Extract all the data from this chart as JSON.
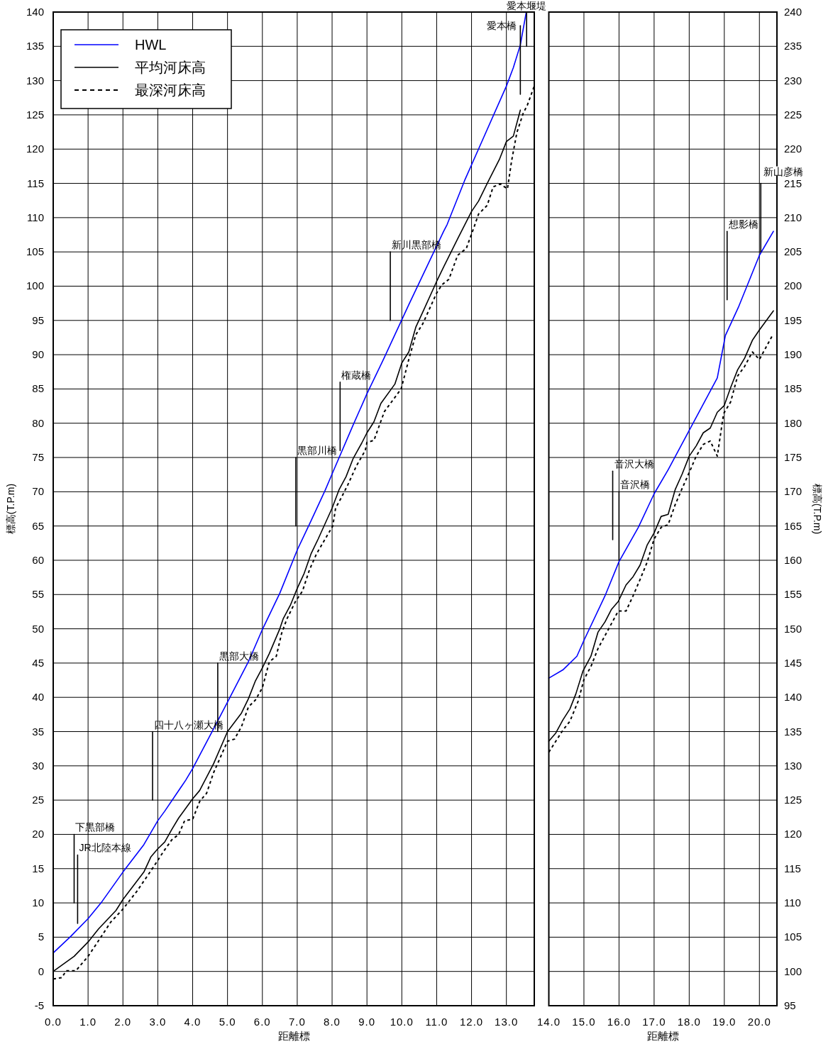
{
  "chart_data": [
    {
      "type": "line",
      "xlabel": "距離標",
      "ylabel": "標高(T.P.m)",
      "xlim": [
        0,
        13.8
      ],
      "xticks": [
        {
          "value": 0,
          "label": "0.0"
        },
        {
          "value": 1,
          "label": "1.0"
        },
        {
          "value": 2,
          "label": "2.0"
        },
        {
          "value": 3,
          "label": "3.0"
        },
        {
          "value": 4,
          "label": "4.0"
        },
        {
          "value": 5,
          "label": "5.0"
        },
        {
          "value": 6,
          "label": "6.0"
        },
        {
          "value": 7,
          "label": "7.0"
        },
        {
          "value": 8,
          "label": "8.0"
        },
        {
          "value": 9,
          "label": "9.0"
        },
        {
          "value": 10,
          "label": "10.0"
        },
        {
          "value": 11,
          "label": "11.0"
        },
        {
          "value": 12,
          "label": "12.0"
        },
        {
          "value": 13,
          "label": "13.0"
        }
      ],
      "ylim": [
        -5,
        140
      ],
      "yticks": [
        -5,
        0,
        5,
        10,
        15,
        20,
        25,
        30,
        35,
        40,
        45,
        50,
        55,
        60,
        65,
        70,
        75,
        80,
        85,
        90,
        95,
        100,
        105,
        110,
        115,
        120,
        125,
        130,
        135,
        140
      ],
      "grid": true,
      "legend": "top left",
      "series": [
        {
          "name": "HWL",
          "color": "#0000ff",
          "x": [
            0,
            0.5,
            1.0,
            1.4,
            2.0,
            2.6,
            3.0,
            3.2,
            3.8,
            4.0,
            4.6,
            5.0,
            5.6,
            6.0,
            6.5,
            7.0,
            7.4,
            7.8,
            8.0,
            8.6,
            9.0,
            9.5,
            10.2,
            11.2,
            11.3,
            11.8,
            12.2,
            13.0,
            13.2,
            13.4,
            13.57
          ],
          "values": [
            2.7,
            5.1,
            7.7,
            10.2,
            14.5,
            18.5,
            22.0,
            23.4,
            27.9,
            29.6,
            35.4,
            39.3,
            45.2,
            49.9,
            55.2,
            61.5,
            65.8,
            70.2,
            72.6,
            79.7,
            84.3,
            89.6,
            97.3,
            108.0,
            109.0,
            115.4,
            120.0,
            129.2,
            131.9,
            135.2,
            140.0
          ]
        },
        {
          "name": "平均河床高",
          "color": "#000000",
          "x": [
            0,
            0.6,
            1.0,
            1.3,
            1.8,
            2.0,
            2.6,
            2.8,
            3.0,
            3.2,
            3.4,
            3.6,
            4.0,
            4.2,
            4.6,
            5.0,
            5.4,
            5.6,
            5.8,
            6.0,
            6.2,
            6.5,
            6.6,
            6.8,
            7.0,
            7.2,
            7.4,
            7.6,
            8.0,
            8.2,
            8.4,
            8.6,
            8.85,
            9.0,
            9.2,
            9.4,
            9.8,
            10.0,
            10.2,
            10.4,
            10.6,
            11.0,
            11.2,
            11.6,
            12.0,
            12.2,
            12.45,
            12.8,
            13.0,
            13.2,
            13.4
          ],
          "values": [
            0.0,
            2.2,
            4.3,
            6.2,
            8.9,
            10.5,
            14.5,
            16.7,
            17.9,
            18.9,
            20.7,
            22.4,
            25.2,
            26.4,
            30.3,
            35.0,
            37.7,
            39.8,
            42.4,
            44.3,
            46.4,
            50.0,
            51.5,
            53.4,
            55.9,
            58.1,
            61.0,
            63.1,
            67.6,
            70.3,
            72.2,
            74.8,
            77.1,
            78.6,
            80.2,
            82.9,
            85.7,
            88.8,
            90.4,
            94.0,
            96.2,
            100.7,
            102.8,
            106.9,
            110.9,
            112.4,
            115.0,
            118.5,
            121.1,
            121.9,
            125.7
          ]
        },
        {
          "name": "最深河床高",
          "color": "#000000",
          "line_style": "dashed",
          "x": [
            0,
            0.25,
            0.37,
            0.65,
            1.0,
            1.25,
            1.65,
            2.0,
            2.4,
            2.75,
            3.0,
            3.15,
            3.4,
            3.6,
            3.77,
            4.0,
            4.2,
            4.4,
            4.6,
            5.0,
            5.2,
            5.4,
            5.6,
            5.8,
            6.0,
            6.2,
            6.4,
            6.55,
            6.7,
            6.95,
            7.15,
            7.35,
            7.55,
            7.8,
            8.02,
            8.1,
            8.25,
            8.45,
            8.7,
            8.95,
            9.0,
            9.2,
            9.5,
            9.98,
            10.2,
            10.4,
            10.6,
            11.0,
            11.15,
            11.35,
            11.6,
            11.85,
            12.05,
            12.2,
            12.45,
            12.62,
            12.83,
            13.03,
            13.15,
            13.3,
            13.48,
            13.6,
            13.8
          ],
          "values": [
            -1.1,
            -0.9,
            0.1,
            0.1,
            2.2,
            4.1,
            7.2,
            9.1,
            11.7,
            14.3,
            16.2,
            17.4,
            19.2,
            20.0,
            22.0,
            22.2,
            24.8,
            26.0,
            29.0,
            33.6,
            33.9,
            35.7,
            38.6,
            39.6,
            41.4,
            45.2,
            46.0,
            49.3,
            51.4,
            54.0,
            55.5,
            58.6,
            60.9,
            63.1,
            65.0,
            67.6,
            69.0,
            71.0,
            73.8,
            76.0,
            77.2,
            77.5,
            81.7,
            85.0,
            89.3,
            92.9,
            94.5,
            99.0,
            100.2,
            101.0,
            104.5,
            105.5,
            108.3,
            110.5,
            111.8,
            114.5,
            114.9,
            114.2,
            118.3,
            122.4,
            125.2,
            126.4,
            129.2
          ]
        },
        {
          "color": "#000000",
          "x": [
            0.6,
            0.6
          ],
          "values": [
            20,
            10
          ]
        },
        {
          "color": "#000000",
          "x": [
            0.7,
            0.7
          ],
          "values": [
            17,
            7
          ]
        },
        {
          "color": "#000000",
          "x": [
            2.85,
            2.85
          ],
          "values": [
            35,
            25
          ]
        },
        {
          "color": "#000000",
          "x": [
            4.72,
            4.72
          ],
          "values": [
            45,
            35
          ]
        },
        {
          "color": "#000000",
          "x": [
            6.96,
            6.96
          ],
          "values": [
            75,
            65
          ]
        },
        {
          "color": "#000000",
          "x": [
            8.23,
            8.23
          ],
          "values": [
            86,
            76
          ]
        },
        {
          "color": "#000000",
          "x": [
            9.67,
            9.67
          ],
          "values": [
            105,
            95
          ]
        },
        {
          "color": "#000000",
          "x": [
            13.4,
            13.4
          ],
          "values": [
            138,
            128
          ]
        },
        {
          "color": "#000000",
          "x": [
            13.58,
            13.58
          ],
          "values": [
            140,
            135
          ]
        }
      ],
      "annotations": [
        {
          "text": "下黒部橋",
          "x": 0.6,
          "y": 20
        },
        {
          "text": "JR北陸本線",
          "x": 0.7,
          "y": 17
        },
        {
          "text": "四十八ヶ瀬大橋",
          "x": 2.85,
          "y": 35
        },
        {
          "text": "黒部大橋",
          "x": 4.72,
          "y": 45
        },
        {
          "text": "黒部川橋",
          "x": 6.96,
          "y": 75
        },
        {
          "text": "権蔵橋",
          "x": 8.23,
          "y": 86
        },
        {
          "text": "新川黒部橋",
          "x": 9.67,
          "y": 105
        },
        {
          "text": "愛本橋",
          "x": 13.4,
          "y": 138
        },
        {
          "text": "愛本堰堤",
          "x": 13.58,
          "y": 140
        }
      ]
    },
    {
      "type": "line",
      "xlabel": "距離標",
      "ylabel": "標高(T.P.m)",
      "xlim": [
        14,
        20.5
      ],
      "xticks": [
        {
          "value": 14,
          "label": "14.0"
        },
        {
          "value": 15,
          "label": "15.0"
        },
        {
          "value": 16,
          "label": "16.0"
        },
        {
          "value": 17,
          "label": "17.0"
        },
        {
          "value": 18,
          "label": "18.0"
        },
        {
          "value": 19,
          "label": "19.0"
        },
        {
          "value": 20,
          "label": "20.0"
        }
      ],
      "ylim": [
        95,
        240
      ],
      "yticks": [
        95,
        100,
        105,
        110,
        115,
        120,
        125,
        130,
        135,
        140,
        145,
        150,
        155,
        160,
        165,
        170,
        175,
        180,
        185,
        190,
        195,
        200,
        205,
        210,
        215,
        220,
        225,
        230,
        235,
        240
      ],
      "grid": true,
      "series": [
        {
          "color": "#0000ff",
          "x": [
            14.0,
            14.4,
            14.8,
            15.0,
            15.6,
            16.0,
            16.55,
            17.0,
            17.4,
            17.9,
            18.8,
            19.03,
            19.4,
            20.0,
            20.4
          ],
          "values": [
            142.8,
            144.0,
            146.0,
            148.3,
            154.8,
            159.8,
            164.8,
            169.7,
            173.2,
            178.0,
            186.6,
            192.8,
            196.9,
            204.5,
            208.0
          ]
        },
        {
          "color": "#000000",
          "x": [
            14.0,
            14.2,
            14.4,
            14.6,
            14.77,
            14.97,
            15.2,
            15.4,
            15.6,
            15.78,
            15.98,
            16.2,
            16.4,
            16.6,
            16.8,
            17.0,
            17.2,
            17.4,
            17.6,
            17.8,
            18.0,
            18.2,
            18.4,
            18.6,
            18.8,
            19.0,
            19.18,
            19.38,
            19.58,
            19.8,
            20.0,
            20.4
          ],
          "values": [
            133.6,
            134.8,
            136.7,
            138.3,
            140.5,
            143.8,
            146.0,
            149.5,
            151.0,
            152.8,
            154.0,
            156.4,
            157.6,
            159.3,
            162.2,
            164.0,
            166.4,
            166.7,
            170.3,
            172.6,
            175.2,
            176.7,
            178.6,
            179.3,
            181.6,
            182.6,
            185.2,
            187.8,
            189.5,
            192.1,
            193.6,
            196.4
          ]
        },
        {
          "color": "#000000",
          "line_style": "dashed",
          "x": [
            14.0,
            14.2,
            14.4,
            14.6,
            14.84,
            15.0,
            15.2,
            15.4,
            15.6,
            15.8,
            15.98,
            16.2,
            16.4,
            16.6,
            16.8,
            17.0,
            17.2,
            17.4,
            17.6,
            17.8,
            18.0,
            18.2,
            18.4,
            18.6,
            18.8,
            18.98,
            19.18,
            19.38,
            19.58,
            19.8,
            20.0,
            20.37
          ],
          "values": [
            132.0,
            133.6,
            135.2,
            136.5,
            139.5,
            142.6,
            144.5,
            147.1,
            149.0,
            150.9,
            152.6,
            152.6,
            154.8,
            157.2,
            159.7,
            163.1,
            164.8,
            165.2,
            168.1,
            170.5,
            172.8,
            175.2,
            176.9,
            177.4,
            175.2,
            181.4,
            183.1,
            186.9,
            188.3,
            190.4,
            189.3,
            192.8
          ]
        },
        {
          "color": "#000000",
          "x": [
            15.82,
            15.82
          ],
          "values": [
            173,
            163
          ]
        },
        {
          "color": "#000000",
          "x": [
            16.0,
            16.0
          ],
          "values": [
            170,
            160
          ]
        },
        {
          "color": "#000000",
          "x": [
            19.08,
            19.08
          ],
          "values": [
            208,
            198
          ]
        },
        {
          "color": "#000000",
          "x": [
            20.04,
            20.04
          ],
          "values": [
            215,
            205
          ]
        }
      ],
      "annotations": [
        {
          "text": "音沢大橋",
          "x": 15.82,
          "y": 173
        },
        {
          "text": "音沢橋",
          "x": 16.0,
          "y": 170
        },
        {
          "text": "想影橋",
          "x": 19.08,
          "y": 208
        },
        {
          "text": "新山彦橋",
          "x": 20.04,
          "y": 215
        }
      ]
    }
  ]
}
